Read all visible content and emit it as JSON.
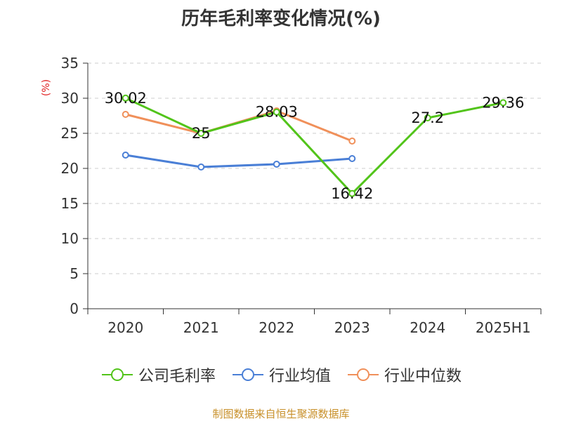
{
  "title": "历年毛利率变化情况(%)",
  "source_note": "制图数据来自恒生聚源数据库",
  "chart_data": {
    "type": "line",
    "title": "历年毛利率变化情况(%)",
    "ylabel": "(%)",
    "categories": [
      "2020",
      "2021",
      "2022",
      "2023",
      "2024",
      "2025H1"
    ],
    "ylim": [
      0,
      35
    ],
    "yticks": [
      0,
      5,
      10,
      15,
      20,
      25,
      30,
      35
    ],
    "grid": true,
    "legend_position": "bottom",
    "series": [
      {
        "name": "公司毛利率",
        "color": "#52c41a",
        "values": [
          30.02,
          25,
          28.03,
          16.42,
          27.2,
          29.36
        ],
        "labels": [
          "30.02",
          "25",
          "28.03",
          "16.42",
          "27.2",
          "29.36"
        ]
      },
      {
        "name": "行业均值",
        "color": "#4a7fd6",
        "values": [
          21.9,
          20.2,
          20.6,
          21.4,
          null,
          null
        ]
      },
      {
        "name": "行业中位数",
        "color": "#f0905a",
        "values": [
          27.7,
          25.0,
          28.2,
          23.9,
          null,
          null
        ]
      }
    ]
  }
}
